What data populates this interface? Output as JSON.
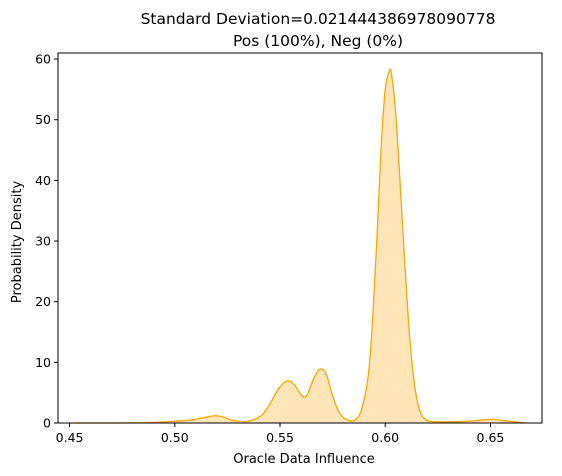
{
  "chart_data": {
    "type": "area",
    "title_line1": "Standard Deviation=0.021444386978090778",
    "title_line2": "Pos (100%), Neg (0%)",
    "xlabel": "Oracle Data Influence",
    "ylabel": "Probability Density",
    "xlim": [
      0.4445,
      0.6745
    ],
    "ylim": [
      0,
      61
    ],
    "x_ticks": [
      0.45,
      0.5,
      0.55,
      0.6,
      0.65
    ],
    "x_tick_labels": [
      "0.45",
      "0.50",
      "0.55",
      "0.60",
      "0.65"
    ],
    "y_ticks": [
      0,
      10,
      20,
      30,
      40,
      50,
      60
    ],
    "y_tick_labels": [
      "0",
      "10",
      "20",
      "30",
      "40",
      "50",
      "60"
    ],
    "grid": false,
    "line_color": "#FFA500",
    "fill_color": "#FFE5B8",
    "series": [
      {
        "x": [
          0.453,
          0.47,
          0.49,
          0.5,
          0.508,
          0.514,
          0.519,
          0.523,
          0.528,
          0.535,
          0.541,
          0.545,
          0.549,
          0.553,
          0.556,
          0.559,
          0.561,
          0.563,
          0.566,
          0.569,
          0.572,
          0.575,
          0.578,
          0.582,
          0.586,
          0.589,
          0.592,
          0.594,
          0.596,
          0.598,
          0.6,
          0.602,
          0.603,
          0.605,
          0.607,
          0.609,
          0.611,
          0.613,
          0.615,
          0.617,
          0.62,
          0.625,
          0.632,
          0.64,
          0.646,
          0.651,
          0.656,
          0.661,
          0.667
        ],
        "y": [
          0,
          0,
          0.1,
          0.3,
          0.5,
          0.9,
          1.2,
          1.0,
          0.4,
          0.3,
          1.2,
          3.0,
          5.5,
          6.9,
          6.6,
          5.2,
          4.3,
          4.7,
          7.3,
          8.9,
          8.0,
          4.5,
          1.8,
          0.5,
          0.6,
          2.5,
          8.0,
          17,
          30,
          45,
          55,
          58,
          57.5,
          51,
          40,
          28,
          17,
          9,
          4,
          1.5,
          0.4,
          0.2,
          0.2,
          0.3,
          0.5,
          0.6,
          0.4,
          0.2,
          0
        ]
      }
    ]
  }
}
